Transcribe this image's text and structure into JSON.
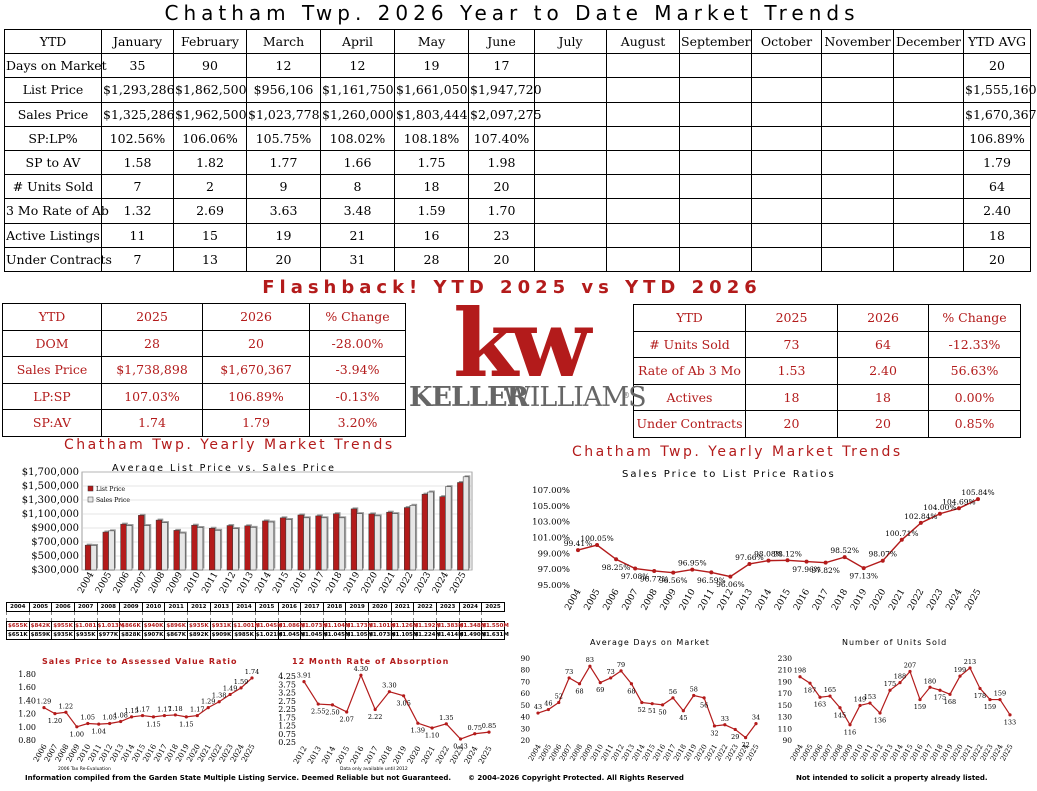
{
  "title": "Chatham Twp. 2026 Year to Date Market Trends",
  "ytd_table": {
    "header": [
      "YTD",
      "January",
      "February",
      "March",
      "April",
      "May",
      "June",
      "July",
      "August",
      "September",
      "October",
      "November",
      "December",
      "YTD AVG"
    ],
    "rows": [
      [
        "Days on Market",
        "35",
        "90",
        "12",
        "12",
        "19",
        "17",
        "",
        "",
        "",
        "",
        "",
        "",
        "20"
      ],
      [
        "List Price",
        "$1,293,286",
        "$1,862,500",
        "$956,106",
        "$1,161,750",
        "$1,661,050",
        "$1,947,720",
        "",
        "",
        "",
        "",
        "",
        "",
        "$1,555,160"
      ],
      [
        "Sales Price",
        "$1,325,286",
        "$1,962,500",
        "$1,023,778",
        "$1,260,000",
        "$1,803,444",
        "$2,097,275",
        "",
        "",
        "",
        "",
        "",
        "",
        "$1,670,367"
      ],
      [
        "SP:LP%",
        "102.56%",
        "106.06%",
        "105.75%",
        "108.02%",
        "108.18%",
        "107.40%",
        "",
        "",
        "",
        "",
        "",
        "",
        "106.89%"
      ],
      [
        "SP to AV",
        "1.58",
        "1.82",
        "1.77",
        "1.66",
        "1.75",
        "1.98",
        "",
        "",
        "",
        "",
        "",
        "",
        "1.79"
      ],
      [
        "# Units Sold",
        "7",
        "2",
        "9",
        "8",
        "18",
        "20",
        "",
        "",
        "",
        "",
        "",
        "",
        "64"
      ],
      [
        "3 Mo Rate of Ab",
        "1.32",
        "2.69",
        "3.63",
        "3.48",
        "1.59",
        "1.70",
        "",
        "",
        "",
        "",
        "",
        "",
        "2.40"
      ],
      [
        "Active Listings",
        "11",
        "15",
        "19",
        "21",
        "16",
        "23",
        "",
        "",
        "",
        "",
        "",
        "",
        "18"
      ],
      [
        "Under Contracts",
        "7",
        "13",
        "20",
        "31",
        "28",
        "20",
        "",
        "",
        "",
        "",
        "",
        "",
        "20"
      ]
    ]
  },
  "flashback": {
    "title": "Flashback!  YTD 2025 vs YTD 2026",
    "left": {
      "header": [
        "YTD",
        "2025",
        "2026",
        "% Change"
      ],
      "rows": [
        [
          "DOM",
          "28",
          "20",
          "-28.00%"
        ],
        [
          "Sales Price",
          "$1,738,898",
          "$1,670,367",
          "-3.94%"
        ],
        [
          "LP:SP",
          "107.03%",
          "106.89%",
          "-0.13%"
        ],
        [
          "SP:AV",
          "1.74",
          "1.79",
          "3.20%"
        ]
      ]
    },
    "right": {
      "header": [
        "YTD",
        "2025",
        "2026",
        "% Change"
      ],
      "rows": [
        [
          "# Units Sold",
          "73",
          "64",
          "-12.33%"
        ],
        [
          "Rate of Ab 3 Mo",
          "1.53",
          "2.40",
          "56.63%"
        ],
        [
          "Actives",
          "18",
          "18",
          "0.00%"
        ],
        [
          "Under Contracts",
          "20",
          "20",
          "0.85%"
        ]
      ]
    }
  },
  "logo": {
    "mark": "kw",
    "word1": "KELLER",
    "word2": "WILLIAMS",
    "reg": "®"
  },
  "yearly_left_title": "Chatham Twp. Yearly Market Trends",
  "yearly_right_title": "Chatham Twp. Yearly Market Trends",
  "av_table": {
    "years": [
      "2004",
      "2005",
      "2006",
      "2007",
      "2008",
      "2009",
      "2010",
      "2011",
      "2012",
      "2013",
      "2014",
      "2015",
      "2016",
      "2017",
      "2018",
      "2019",
      "2020",
      "2021",
      "2022",
      "2023",
      "2024",
      "2025"
    ],
    "row1": [
      "$655K",
      "$842K",
      "$955K",
      "$1.081",
      "$1.013M",
      "$866K",
      "$940K",
      "$896K",
      "$935K",
      "$931K",
      "$1.001M",
      "$1.045M",
      "$1.086M",
      "$1.073M",
      "$1.104M",
      "$1.173M",
      "$1.101M",
      "$1.126M",
      "$1.192M",
      "$1.383M",
      "$1.348M",
      "$1.550M"
    ],
    "row2": [
      "$651K",
      "$859K",
      "$935K",
      "$935K",
      "$977K",
      "$828K",
      "$907K",
      "$867K",
      "$892K",
      "$909K",
      "$985K",
      "$1.021M",
      "$1.045M",
      "$1.045M",
      "$1.045M",
      "$1.105M",
      "$1.073M",
      "$1.105M",
      "$1.224M",
      "$1.414M",
      "$1.490M",
      "$1.631M"
    ]
  },
  "chart_data": [
    {
      "type": "bar",
      "title": "Average List Price vs. Sales Price",
      "categories": [
        "2004",
        "2005",
        "2006",
        "2007",
        "2008",
        "2009",
        "2010",
        "2011",
        "2012",
        "2013",
        "2014",
        "2015",
        "2016",
        "2017",
        "2018",
        "2019",
        "2020",
        "2021",
        "2022",
        "2023",
        "2024",
        "2025"
      ],
      "series": [
        {
          "name": "List Price",
          "color": "#b31b1b",
          "values": [
            655000,
            842000,
            955000,
            1081000,
            1013000,
            866000,
            940000,
            896000,
            935000,
            931000,
            1001000,
            1045000,
            1086000,
            1073000,
            1104000,
            1173000,
            1101000,
            1126000,
            1192000,
            1383000,
            1348000,
            1550000
          ]
        },
        {
          "name": "Sales Price",
          "color": "#e6e6e6",
          "values": [
            651000,
            859000,
            935000,
            935000,
            977000,
            828000,
            907000,
            867000,
            892000,
            909000,
            985000,
            1021000,
            1045000,
            1045000,
            1045000,
            1105000,
            1073000,
            1105000,
            1224000,
            1414000,
            1490000,
            1631000
          ]
        }
      ],
      "ylim": [
        300000,
        1700000
      ],
      "yticks": [
        "$300,000",
        "$500,000",
        "$700,000",
        "$900,000",
        "$1,100,000",
        "$1,300,000",
        "$1,500,000",
        "$1,700,000"
      ],
      "legend": "top-left"
    },
    {
      "type": "line",
      "title": "Sales Price to List Price Ratios",
      "categories": [
        "2004",
        "2005",
        "2006",
        "2007",
        "2008",
        "2009",
        "2010",
        "2011",
        "2012",
        "2013",
        "2014",
        "2015",
        "2016",
        "2017",
        "2018",
        "2019",
        "2020",
        "2021",
        "2022",
        "2023",
        "2024",
        "2025"
      ],
      "values": [
        99.41,
        100.05,
        98.25,
        97.08,
        96.77,
        96.56,
        96.95,
        96.59,
        96.06,
        97.66,
        98.08,
        98.12,
        97.96,
        97.82,
        98.52,
        97.13,
        98.07,
        100.71,
        102.84,
        104.0,
        104.69,
        105.84
      ],
      "labels": [
        "99.41%",
        "100.05%",
        "98.25%",
        "97.08%",
        "96.77%",
        "96.56%",
        "96.95%",
        "96.59%",
        "96.06%",
        "97.66%",
        "98.08%",
        "98.12%",
        "97.96%",
        "97.82%",
        "98.52%",
        "97.13%",
        "98.07%",
        "100.71%",
        "102.84%",
        "104.00%",
        "104.69%",
        "105.84%"
      ],
      "ylim": [
        95,
        107
      ],
      "yticks": [
        "95.00%",
        "97.00%",
        "99.00%",
        "101.00%",
        "103.00%",
        "105.00%",
        "107.00%"
      ]
    },
    {
      "type": "line",
      "title": "Sales Price to Assessed Value Ratio",
      "categories": [
        "2006",
        "2007",
        "2008",
        "2009",
        "2010",
        "2011",
        "2012",
        "2013",
        "2014",
        "2015",
        "2016",
        "2017",
        "2018",
        "2019",
        "2020",
        "2021",
        "2022",
        "2023",
        "2024",
        "2025"
      ],
      "values": [
        1.29,
        1.2,
        1.22,
        1.0,
        1.05,
        1.04,
        1.05,
        1.08,
        1.15,
        1.17,
        1.15,
        1.17,
        1.18,
        1.15,
        1.17,
        1.29,
        1.38,
        1.49,
        1.59,
        1.74
      ],
      "labels": [
        "1.29",
        "1.20",
        "1.22",
        "1.00",
        "1.05",
        "1.04",
        "1.05",
        "1.08",
        "1.15",
        "1.17",
        "1.15",
        "1.17",
        "1.18",
        "1.15",
        "1.17",
        "1.29",
        "1.38",
        "1.49",
        "1.59",
        "1.74"
      ],
      "ylim": [
        0.8,
        1.8
      ],
      "yticks": [
        "0.80",
        "1.00",
        "1.20",
        "1.40",
        "1.60",
        "1.80"
      ],
      "note": "2006 Tax Re-Evaluation"
    },
    {
      "type": "line",
      "title": "12 Month Rate of Absorption",
      "categories": [
        "2012",
        "2013",
        "2014",
        "2015",
        "2016",
        "2017",
        "2018",
        "2019",
        "2020",
        "2021",
        "2022",
        "2023",
        "2024",
        "2025"
      ],
      "values": [
        3.91,
        2.55,
        2.5,
        2.07,
        4.3,
        2.22,
        3.3,
        3.05,
        1.39,
        1.1,
        1.35,
        0.43,
        0.75,
        0.85
      ],
      "labels": [
        "3.91",
        "2.55",
        "2.50",
        "2.07",
        "4.30",
        "2.22",
        "3.30",
        "3.05",
        "1.39",
        "1.10",
        "1.35",
        "0.43",
        "0.75",
        "0.85"
      ],
      "ylim": [
        0.25,
        4.25
      ],
      "yticks": [
        "0.25",
        "0.75",
        "1.25",
        "1.75",
        "2.25",
        "2.75",
        "3.25",
        "3.75",
        "4.25"
      ],
      "note": "Data only available until 2012"
    },
    {
      "type": "line",
      "title": "Average Days on Market",
      "categories": [
        "2004",
        "2005",
        "2006",
        "2007",
        "2008",
        "2009",
        "2010",
        "2011",
        "2012",
        "2013",
        "2014",
        "2015",
        "2016",
        "2017",
        "2018",
        "2019",
        "2020",
        "2021",
        "2022",
        "2023",
        "2024",
        "2025"
      ],
      "values": [
        43,
        46,
        52,
        73,
        68,
        83,
        69,
        73,
        79,
        68,
        52,
        51,
        50,
        56,
        45,
        58,
        56,
        32,
        33,
        29,
        22,
        34
      ],
      "labels": [
        "43",
        "46",
        "52",
        "73",
        "68",
        "83",
        "69",
        "73",
        "79",
        "68",
        "52",
        "51",
        "50",
        "56",
        "45",
        "58",
        "56",
        "32",
        "33",
        "29",
        "22",
        "34"
      ],
      "ylim": [
        20,
        90
      ],
      "yticks": [
        "20",
        "30",
        "40",
        "50",
        "60",
        "70",
        "80",
        "90"
      ]
    },
    {
      "type": "line",
      "title": "Number of Units Sold",
      "categories": [
        "2004",
        "2005",
        "2006",
        "2007",
        "2008",
        "2009",
        "2010",
        "2011",
        "2012",
        "2013",
        "2014",
        "2015",
        "2016",
        "2017",
        "2018",
        "2019",
        "2020",
        "2021",
        "2022",
        "2023",
        "2024",
        "2025"
      ],
      "values": [
        198,
        187,
        163,
        165,
        145,
        116,
        149,
        153,
        136,
        175,
        188,
        207,
        159,
        180,
        175,
        168,
        199,
        213,
        178,
        159,
        159,
        133
      ],
      "labels": [
        "198",
        "187",
        "163",
        "165",
        "145",
        "116",
        "149",
        "153",
        "136",
        "175",
        "188",
        "207",
        "159",
        "180",
        "175",
        "168",
        "199",
        "213",
        "178",
        "159",
        "159",
        "133"
      ],
      "ylim": [
        90,
        230
      ],
      "yticks": [
        "90",
        "110",
        "130",
        "150",
        "170",
        "190",
        "210",
        "230"
      ]
    }
  ],
  "footer": {
    "left": "Information compiled from the Garden State Multiple Listing Service.  Deemed Reliable but not Guaranteed.",
    "center": "© 2004-2026 Copyright Protected.  All Rights Reserved",
    "right": "Not intended to solicit a property already listed."
  },
  "colors": {
    "accent": "#b31b1b"
  }
}
